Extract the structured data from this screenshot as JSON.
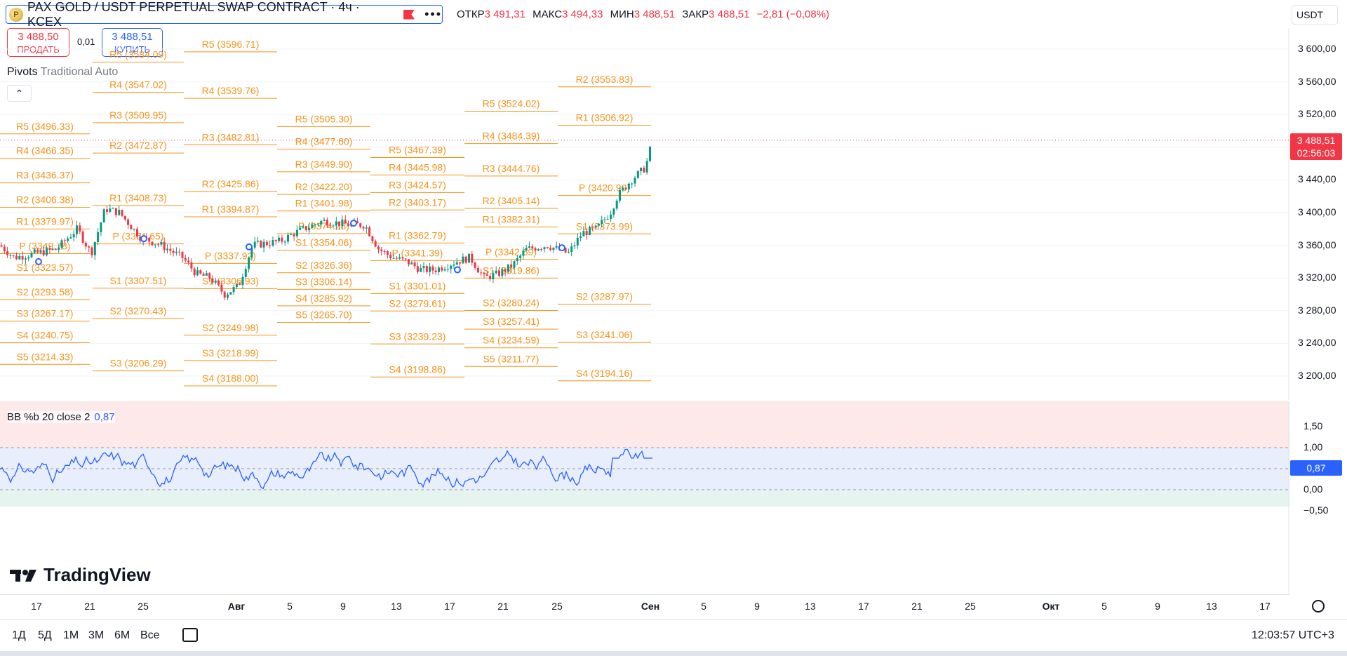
{
  "header": {
    "symbol_title": "PAX GOLD / USDT PERPETUAL SWAP CONTRACT · 4ч · KCEX",
    "icon": "pax-gold-coin-icon",
    "ohlc": {
      "open_label": "ОТКР",
      "open": "3 491,31",
      "high_label": "МАКС",
      "high": "3 494,33",
      "low_label": "МИН",
      "low": "3 488,51",
      "close_label": "ЗАКР",
      "close": "3 488,51",
      "change": "−2,81 (−0,08%)"
    },
    "currency": "USDT"
  },
  "trade": {
    "sell_price": "3 488,50",
    "sell_label": "ПРОДАТЬ",
    "spread": "0,01",
    "buy_price": "3 488,51",
    "buy_label": "КУПИТЬ"
  },
  "indicator": {
    "name": "Pivots",
    "settings": "Traditional Auto"
  },
  "price_scale": {
    "ticks": [
      "3 600,00",
      "3 560,00",
      "3 520,00",
      "3 480,00",
      "3 440,00",
      "3 400,00",
      "3 360,00",
      "3 320,00",
      "3 280,00",
      "3 240,00",
      "3 200,00"
    ],
    "last_price": "3 488,51",
    "countdown": "02:56:03"
  },
  "oscillator": {
    "label_name": "BB %b",
    "label_params": "20 close 2",
    "value": "0,87",
    "ticks": [
      "1,50",
      "1,00",
      "0,50",
      "0,00",
      "−0,50"
    ]
  },
  "pivots": [
    {
      "labels": [
        "R5 (3584.09)",
        "R4 (3547.02)",
        "R3 (3509.95)",
        "R2 (3472.87)",
        "R1 (3408.73)",
        "P (3361.65)",
        "S1 (3307.51)",
        "S2 (3270.43)",
        "S3 (3206.29)"
      ]
    },
    {
      "labels": [
        "R5 (3496.33)",
        "R4 (3466.35)",
        "R3 (3436.37)",
        "R2 (3406.38)",
        "R1 (3379.97)",
        "P (3349.78)",
        "S1 (3323.57)",
        "S2 (3293.58)",
        "S3 (3267.17)",
        "S4 (3240.75)",
        "S5 (3214.33)"
      ]
    },
    {
      "labels": [
        "R5 (3596.71)",
        "R4 (3539.76)",
        "R3 (3482.81)",
        "R2 (3425.86)",
        "R1 (3394.87)",
        "P (3337.92)",
        "S1 (3306.93)",
        "S2 (3249.98)",
        "S3 (3218.99)",
        "S4 (3188.00)"
      ]
    },
    {
      "labels": [
        "R5 (3505.30)",
        "R4 (3477.60)",
        "R3 (3449.90)",
        "R2 (3422.20)",
        "R1 (3401.98)",
        "P (3374.28)",
        "S1 (3354.06)",
        "S2 (3326.36)",
        "S3 (3306.14)",
        "S4 (3285.92)",
        "S5 (3265.70)"
      ]
    },
    {
      "labels": [
        "R5 (3467.39)",
        "R4 (3445.98)",
        "R3 (3424.57)",
        "R2 (3403.17)",
        "R1 (3362.79)",
        "P (3341.39)",
        "S1 (3301.01)",
        "S2 (3279.61)",
        "S3 (3239.23)",
        "S4 (3198.86)"
      ]
    },
    {
      "labels": [
        "R5 (3524.02)",
        "R4 (3484.39)",
        "R3 (3444.76)",
        "R2 (3405.14)",
        "R1 (3382.31)",
        "P (3342.69)",
        "S1 (3319.86)",
        "S2 (3280.24)",
        "S3 (3257.41)",
        "S4 (3234.59)",
        "S5 (3211.77)"
      ]
    },
    {
      "labels": [
        "R2 (3553.83)",
        "R1 (3506.92)",
        "P (3420.90)",
        "S1 (3373.99)",
        "S2 (3287.97)",
        "S3 (3241.06)",
        "S4 (3194.16)"
      ]
    }
  ],
  "time_axis": {
    "ticks": [
      {
        "t": "17",
        "bold": false
      },
      {
        "t": "21",
        "bold": false
      },
      {
        "t": "25",
        "bold": false
      },
      {
        "t": "Авг",
        "bold": true
      },
      {
        "t": "5",
        "bold": false
      },
      {
        "t": "9",
        "bold": false
      },
      {
        "t": "13",
        "bold": false
      },
      {
        "t": "17",
        "bold": false
      },
      {
        "t": "21",
        "bold": false
      },
      {
        "t": "25",
        "bold": false
      },
      {
        "t": "Сен",
        "bold": true
      },
      {
        "t": "5",
        "bold": false
      },
      {
        "t": "9",
        "bold": false
      },
      {
        "t": "13",
        "bold": false
      },
      {
        "t": "17",
        "bold": false
      },
      {
        "t": "21",
        "bold": false
      },
      {
        "t": "25",
        "bold": false
      },
      {
        "t": "Окт",
        "bold": true
      },
      {
        "t": "5",
        "bold": false
      },
      {
        "t": "9",
        "bold": false
      },
      {
        "t": "13",
        "bold": false
      },
      {
        "t": "17",
        "bold": false
      }
    ]
  },
  "bottom_bar": {
    "ranges": [
      "1Д",
      "5Д",
      "1М",
      "3М",
      "6М",
      "Все"
    ],
    "clock": "12:03:57 UTC+3"
  },
  "branding": {
    "logo_text": "TradingView"
  },
  "colors": {
    "up": "#089981",
    "down": "#f23645",
    "pivot": "#f7931a",
    "accent": "#2962ff"
  }
}
